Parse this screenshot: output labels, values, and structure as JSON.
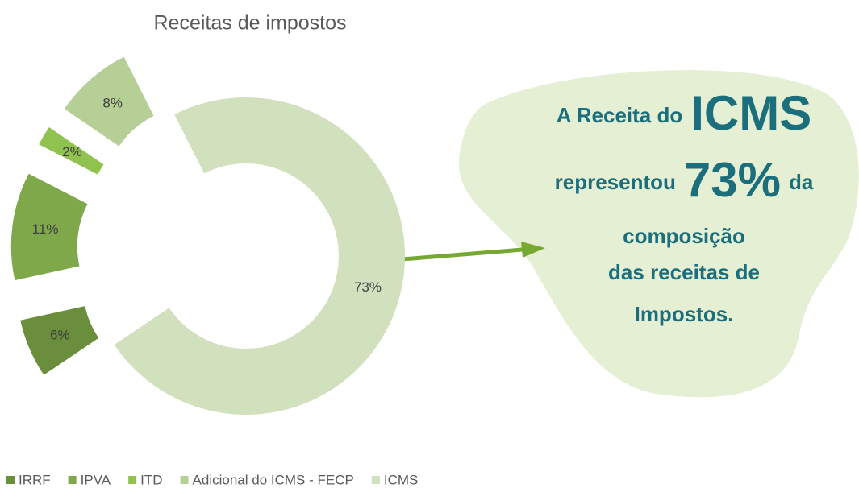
{
  "chart_data": {
    "type": "donut",
    "title": "Receitas de impostos",
    "categories": [
      "IRRF",
      "IPVA",
      "ITD",
      "Adicional do ICMS - FECP",
      "ICMS"
    ],
    "values": [
      6,
      11,
      2,
      8,
      73
    ],
    "value_labels": [
      "6%",
      "11%",
      "2%",
      "8%",
      "73%"
    ],
    "colors": [
      "#6b8e3c",
      "#7fa84b",
      "#8fc24f",
      "#b5cf96",
      "#d1e0bd"
    ],
    "legend": "bottom",
    "annotation": [
      [
        "A Receita do",
        "ICMS"
      ],
      [
        "representou",
        "73%",
        "da"
      ],
      [
        "composição"
      ],
      [
        "das receitas de"
      ],
      [
        "Impostos."
      ]
    ]
  }
}
